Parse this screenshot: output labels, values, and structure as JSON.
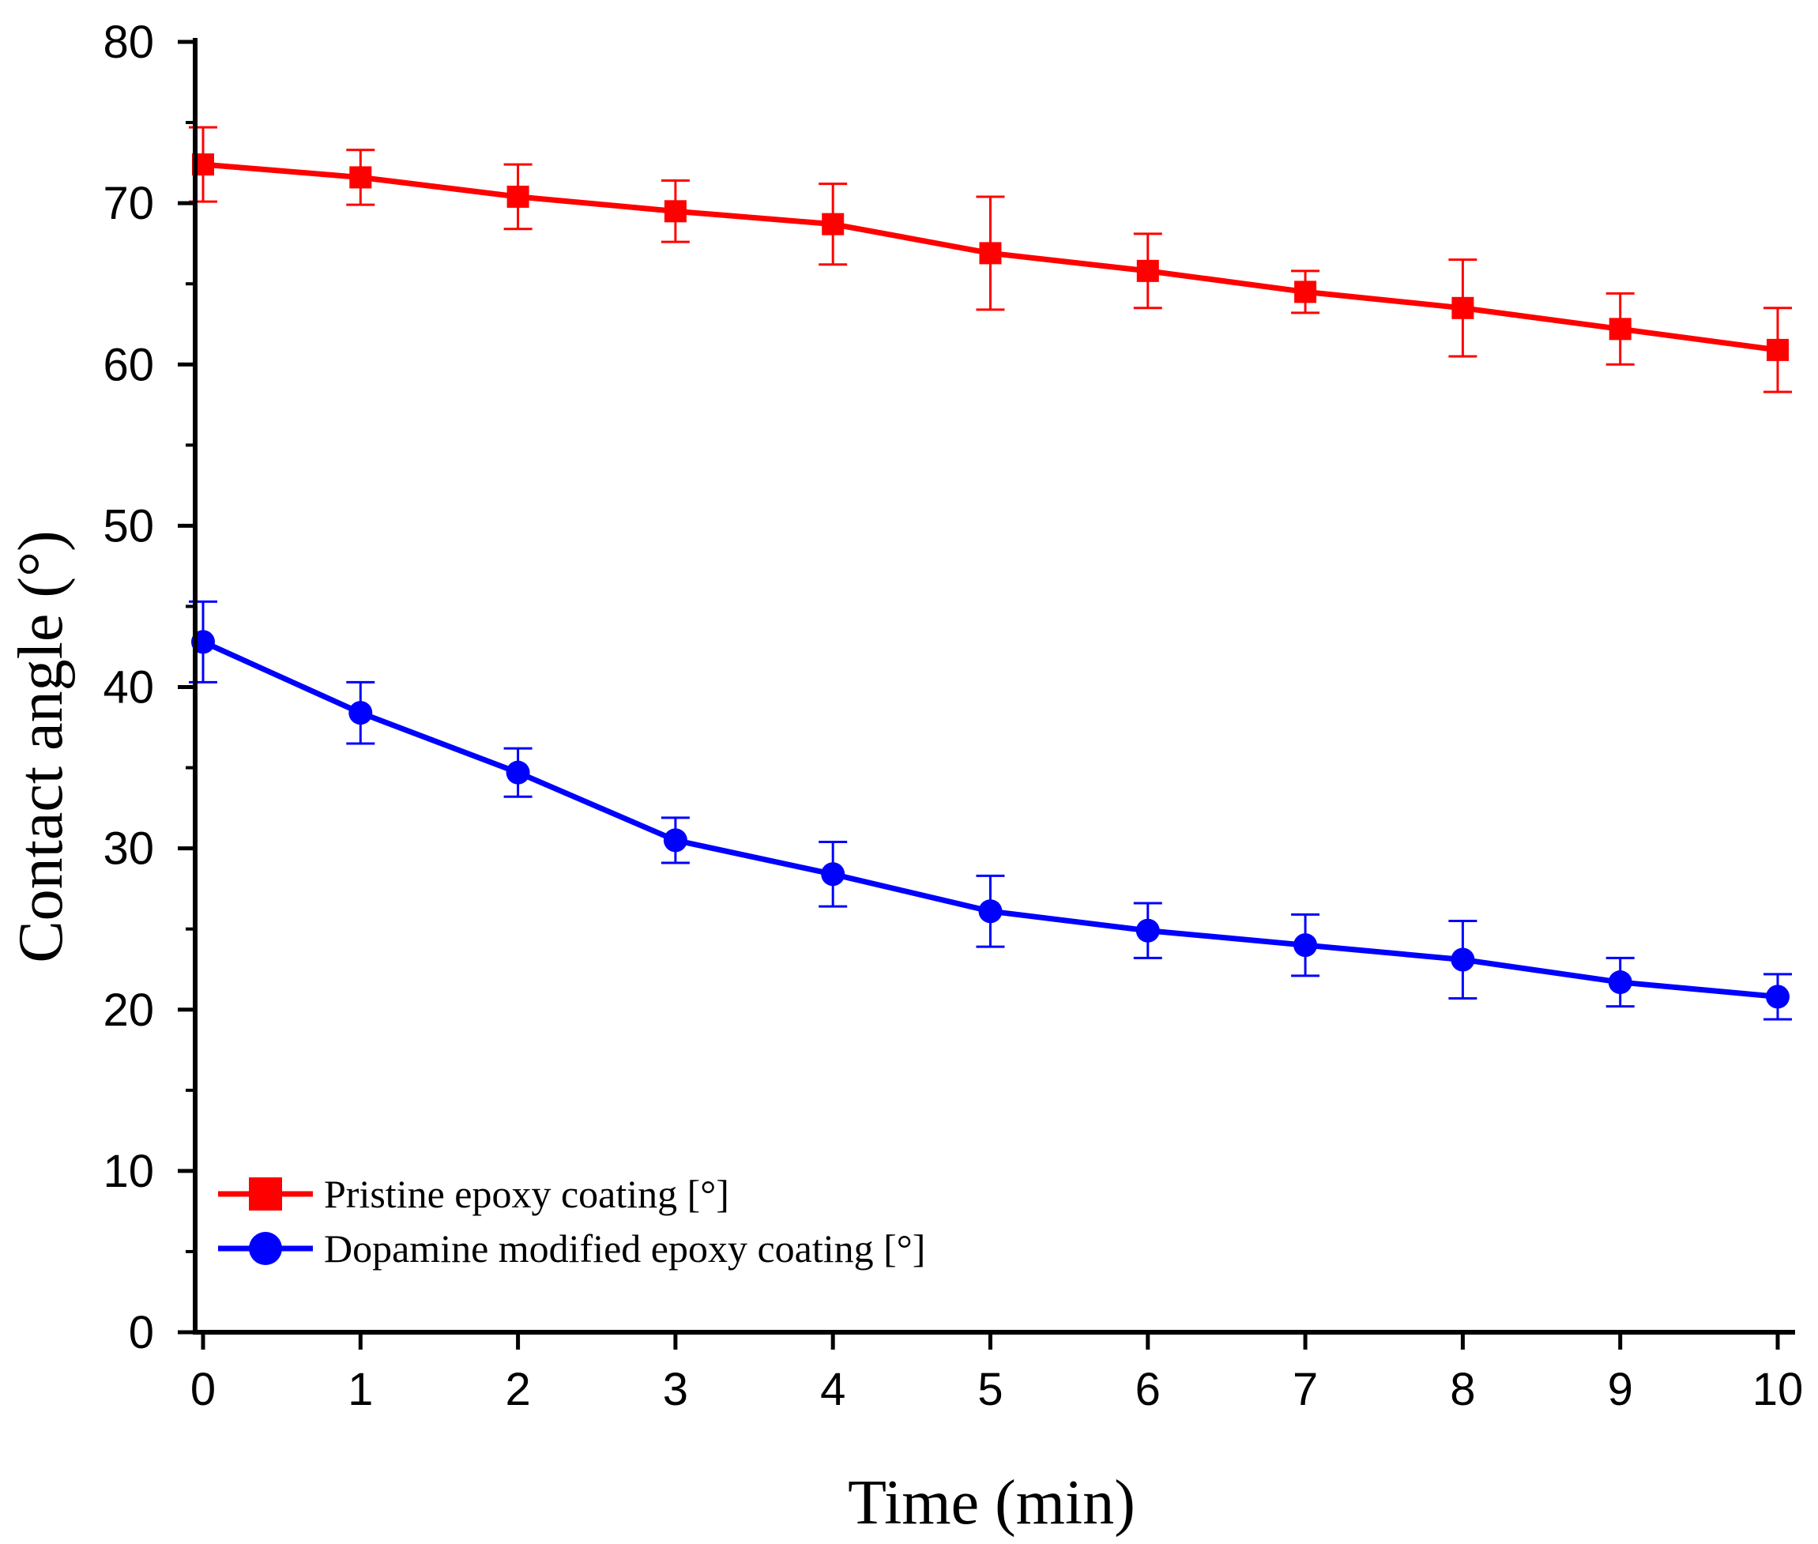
{
  "chart_data": {
    "type": "line",
    "title": "",
    "xlabel": "Time (min)",
    "ylabel": "Contact angle (°)",
    "xlim": [
      0,
      10
    ],
    "ylim": [
      0,
      80
    ],
    "xticks": [
      0,
      1,
      2,
      3,
      4,
      5,
      6,
      7,
      8,
      9,
      10
    ],
    "yticks": [
      0,
      10,
      20,
      30,
      40,
      50,
      60,
      70,
      80
    ],
    "grid": false,
    "legend_position": "bottom-left",
    "x": [
      0,
      1,
      2,
      3,
      4,
      5,
      6,
      7,
      8,
      9,
      10
    ],
    "series": [
      {
        "name": "Pristine epoxy coating [°]",
        "color": "#ff0000",
        "marker": "square",
        "values": [
          72.4,
          71.6,
          70.4,
          69.5,
          68.7,
          66.9,
          65.8,
          64.5,
          63.5,
          62.2,
          60.9
        ],
        "errors": [
          2.3,
          1.7,
          2.0,
          1.9,
          2.5,
          3.5,
          2.3,
          1.3,
          3.0,
          2.2,
          2.6
        ]
      },
      {
        "name": "Dopamine modified epoxy coating [°]",
        "color": "#0000ff",
        "marker": "circle",
        "values": [
          42.8,
          38.4,
          34.7,
          30.5,
          28.4,
          26.1,
          24.9,
          24.0,
          23.1,
          21.7,
          20.8
        ],
        "errors": [
          2.5,
          1.9,
          1.5,
          1.4,
          2.0,
          2.2,
          1.7,
          1.9,
          2.4,
          1.5,
          1.4
        ]
      }
    ]
  }
}
